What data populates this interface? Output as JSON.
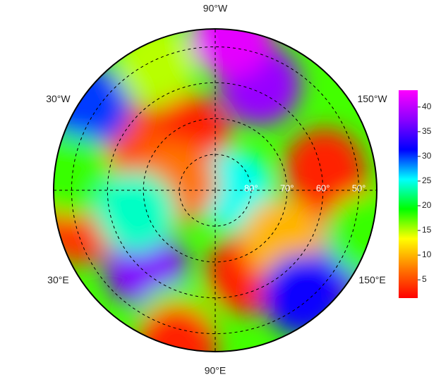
{
  "map": {
    "projection": "north polar stereographic",
    "lat_limit": 45,
    "longitude_labels": [
      {
        "value": -90,
        "label": "90°W"
      },
      {
        "value": -30,
        "label": "30°W"
      },
      {
        "value": -150,
        "label": "150°W"
      },
      {
        "value": 30,
        "label": "30°E"
      },
      {
        "value": 150,
        "label": "150°E"
      },
      {
        "value": 90,
        "label": "90°E"
      }
    ],
    "latitude_labels": [
      {
        "value": 80,
        "label": "80°"
      },
      {
        "value": 70,
        "label": "70°"
      },
      {
        "value": 60,
        "label": "60°"
      },
      {
        "value": 50,
        "label": "50°"
      }
    ],
    "regions": [
      {
        "lat": 73,
        "lon": -66,
        "value": 3
      },
      {
        "lat": 58,
        "lon": -113,
        "value": 38
      },
      {
        "lat": 59,
        "lon": -169,
        "value": 3
      },
      {
        "lat": 55,
        "lon": 170,
        "value": 3
      },
      {
        "lat": 65,
        "lon": 111,
        "value": 3
      },
      {
        "lat": 61,
        "lon": 48,
        "value": 37
      },
      {
        "lat": 51,
        "lon": 14,
        "value": 4
      },
      {
        "lat": 62,
        "lon": -29,
        "value": 5
      },
      {
        "lat": 48,
        "lon": -34,
        "value": 30
      },
      {
        "lat": 50,
        "lon": -6,
        "value": 18
      },
      {
        "lat": 85,
        "lon": 180,
        "value": 25
      },
      {
        "lat": 51,
        "lon": 74,
        "value": 17
      },
      {
        "lat": 53,
        "lon": 145,
        "value": 36
      },
      {
        "lat": 51,
        "lon": -65,
        "value": 15
      },
      {
        "lat": 67,
        "lon": 144,
        "value": 10
      },
      {
        "lat": 46,
        "lon": 164,
        "value": 18
      },
      {
        "lat": 79,
        "lon": -10,
        "value": 7
      },
      {
        "lat": 52,
        "lon": 130,
        "value": 32
      },
      {
        "lat": 45.5,
        "lon": 76,
        "value": 3
      },
      {
        "lat": 47,
        "lon": -96,
        "value": 42
      },
      {
        "lat": 67,
        "lon": 15,
        "value": 24
      }
    ]
  },
  "colorbar": {
    "lim": [
      1.3,
      43.4
    ],
    "ticks": [
      5,
      10,
      15,
      20,
      25,
      30,
      35,
      40
    ],
    "colors": [
      "#ff0000",
      "#ff7a00",
      "#ffff00",
      "#00ff00",
      "#00ffff",
      "#0000ff",
      "#8a00ff",
      "#ff00ff"
    ]
  }
}
